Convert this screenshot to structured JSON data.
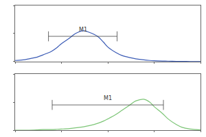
{
  "chart_data": [
    {
      "type": "line",
      "log": "x",
      "grid": false,
      "tick_labels": false,
      "color": "#3b5bb5",
      "xlim": [
        1,
        10000
      ],
      "ylim": [
        0,
        100
      ],
      "annotations": [
        "M1"
      ],
      "x": [
        1,
        1.5,
        2,
        3,
        4,
        6,
        8,
        10,
        15,
        20,
        30,
        40,
        60,
        80,
        100,
        150,
        200,
        300,
        400,
        600,
        800,
        1000,
        1500,
        2000,
        3000,
        4000,
        6000,
        8000,
        10000
      ],
      "values": [
        2,
        3,
        5,
        8,
        12,
        18,
        25,
        32,
        42,
        50,
        55,
        52,
        45,
        35,
        26,
        16,
        11,
        7,
        5,
        3,
        2,
        1.5,
        1,
        0.8,
        0.5,
        0.3,
        0.2,
        0.1,
        0
      ]
    },
    {
      "type": "line",
      "log": "x",
      "grid": false,
      "tick_labels": false,
      "color": "#7cc576",
      "xlim": [
        1,
        10000
      ],
      "ylim": [
        0,
        100
      ],
      "annotations": [
        "M1"
      ],
      "x": [
        1,
        1.5,
        2,
        3,
        4,
        6,
        8,
        10,
        15,
        20,
        30,
        40,
        60,
        80,
        100,
        150,
        200,
        300,
        400,
        600,
        800,
        1000,
        1500,
        2000,
        3000,
        4000,
        6000,
        8000,
        10000
      ],
      "values": [
        0,
        0,
        0,
        0.5,
        1,
        1,
        1.5,
        2,
        3,
        4,
        6,
        8,
        12,
        16,
        20,
        28,
        35,
        45,
        52,
        55,
        50,
        42,
        30,
        20,
        10,
        5,
        2,
        1,
        0.5
      ]
    }
  ]
}
